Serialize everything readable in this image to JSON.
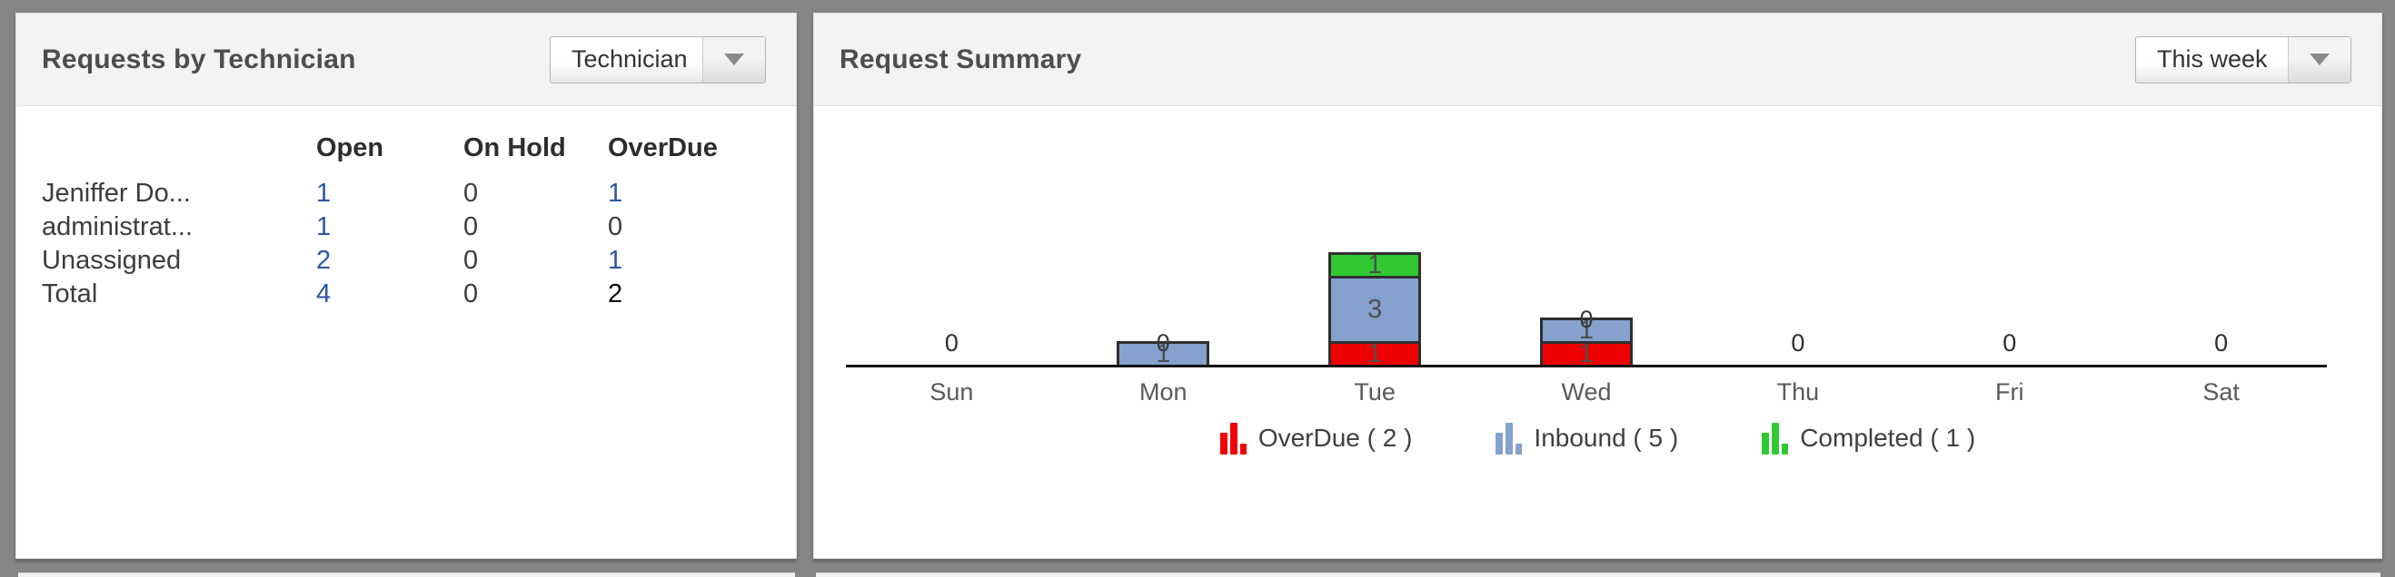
{
  "left_panel": {
    "title": "Requests by Technician",
    "dropdown": {
      "value": "Technician"
    },
    "table": {
      "columns": [
        "",
        "Open",
        "On Hold",
        "OverDue"
      ],
      "rows": [
        {
          "label": "Jeniffer Do...",
          "cells": [
            {
              "text": "1",
              "variant": "link"
            },
            {
              "text": "0",
              "variant": "plain"
            },
            {
              "text": "1",
              "variant": "link"
            }
          ]
        },
        {
          "label": "administrat...",
          "cells": [
            {
              "text": "1",
              "variant": "link"
            },
            {
              "text": "0",
              "variant": "plain"
            },
            {
              "text": "0",
              "variant": "plain"
            }
          ]
        },
        {
          "label": "Unassigned",
          "cells": [
            {
              "text": "2",
              "variant": "link"
            },
            {
              "text": "0",
              "variant": "plain"
            },
            {
              "text": "1",
              "variant": "link"
            }
          ]
        },
        {
          "label": "Total",
          "cells": [
            {
              "text": "4",
              "variant": "link"
            },
            {
              "text": "0",
              "variant": "plain"
            },
            {
              "text": "2",
              "variant": "strong"
            }
          ]
        }
      ]
    }
  },
  "right_panel": {
    "title": "Request Summary",
    "dropdown": {
      "value": "This week"
    },
    "chart_data": {
      "type": "bar",
      "stacked": true,
      "categories": [
        "Sun",
        "Mon",
        "Tue",
        "Wed",
        "Thu",
        "Fri",
        "Sat"
      ],
      "series": [
        {
          "name": "OverDue",
          "color": "#ee0100",
          "values": [
            0,
            0,
            1,
            1,
            0,
            0,
            0
          ],
          "total": 2
        },
        {
          "name": "Inbound",
          "color": "#85a1ce",
          "values": [
            0,
            1,
            3,
            1,
            0,
            0,
            0
          ],
          "total": 5
        },
        {
          "name": "Completed",
          "color": "#30c932",
          "values": [
            0,
            0,
            1,
            0,
            0,
            0,
            0
          ],
          "total": 1
        }
      ],
      "legend": [
        "OverDue ( 2 )",
        "Inbound ( 5 )",
        "Completed ( 1 )"
      ],
      "legend_position": "bottom-center",
      "zero_label": "0",
      "ylim": [
        0,
        5
      ],
      "grid": false
    }
  },
  "colors": {
    "link_blue": "#2b57a5",
    "overdue_red": "#ee0100",
    "inbound_blue": "#85a1ce",
    "completed_green": "#30c932",
    "bar_outline": "#2f2f2f",
    "frame_gray": "#868686"
  }
}
